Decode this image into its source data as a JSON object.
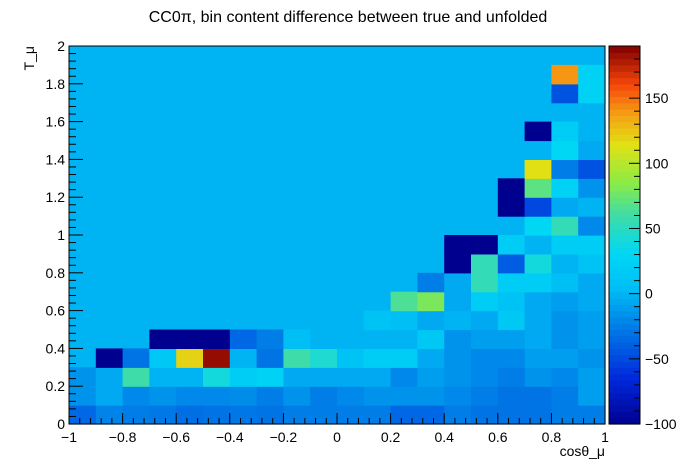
{
  "chart_data": {
    "type": "heatmap",
    "title": "CC0π, bin content difference between true and unfolded",
    "xlabel": "cosθ_μ",
    "ylabel": "T_μ",
    "xlim": [
      -1,
      1
    ],
    "ylim": [
      0,
      2
    ],
    "zlim": [
      -100,
      190
    ],
    "x_ticks": [
      "−1",
      "−0.8",
      "−0.6",
      "−0.4",
      "−0.2",
      "0",
      "0.2",
      "0.4",
      "0.6",
      "0.8",
      "1"
    ],
    "y_ticks": [
      "0",
      "0.2",
      "0.4",
      "0.6",
      "0.8",
      "1",
      "1.2",
      "1.4",
      "1.6",
      "1.8",
      "2"
    ],
    "z_ticks": [
      "−100",
      "−50",
      "0",
      "50",
      "100",
      "150"
    ],
    "background_value": 0,
    "nx": 20,
    "ny": 20,
    "rows": [
      [
        -35,
        -22,
        -25,
        -27,
        -32,
        -30,
        -28,
        -30,
        -25,
        -25,
        -25,
        -25,
        -35,
        -35,
        -25,
        -30,
        -30,
        -30,
        -25,
        -25
      ],
      [
        -15,
        -5,
        -20,
        -15,
        -20,
        -20,
        -18,
        -25,
        -15,
        -25,
        -20,
        -15,
        -15,
        -15,
        -20,
        -25,
        -30,
        -30,
        -25,
        -10
      ],
      [
        -15,
        -5,
        60,
        0,
        0,
        40,
        20,
        25,
        -5,
        -5,
        -5,
        -5,
        -20,
        -10,
        -15,
        -20,
        -25,
        -15,
        -20,
        -10
      ],
      [
        null,
        -100,
        -30,
        15,
        120,
        185,
        0,
        -30,
        60,
        45,
        10,
        20,
        20,
        -5,
        -15,
        -20,
        -20,
        -10,
        -10,
        -15
      ],
      [
        null,
        null,
        null,
        -100,
        -100,
        -100,
        -35,
        -25,
        5,
        0,
        0,
        0,
        0,
        15,
        -15,
        -10,
        -10,
        -5,
        -15,
        -10
      ],
      [
        null,
        null,
        null,
        null,
        null,
        null,
        null,
        null,
        null,
        null,
        null,
        10,
        5,
        -5,
        0,
        -5,
        15,
        -5,
        -15,
        -10
      ],
      [
        null,
        null,
        null,
        null,
        null,
        null,
        null,
        null,
        null,
        null,
        null,
        null,
        65,
        80,
        -5,
        20,
        10,
        -5,
        -10,
        -5
      ],
      [
        null,
        null,
        null,
        null,
        null,
        null,
        null,
        null,
        null,
        null,
        null,
        null,
        null,
        -25,
        -5,
        55,
        20,
        20,
        5,
        -5
      ],
      [
        null,
        null,
        null,
        null,
        null,
        null,
        null,
        null,
        null,
        null,
        null,
        null,
        null,
        null,
        -100,
        55,
        -40,
        40,
        0,
        10
      ],
      [
        null,
        null,
        null,
        null,
        null,
        null,
        null,
        null,
        null,
        null,
        null,
        null,
        null,
        null,
        -100,
        -100,
        20,
        0,
        20,
        20
      ],
      [
        null,
        null,
        null,
        null,
        null,
        null,
        null,
        null,
        null,
        null,
        null,
        null,
        null,
        null,
        null,
        null,
        null,
        30,
        55,
        -20
      ],
      [
        null,
        null,
        null,
        null,
        null,
        null,
        null,
        null,
        null,
        null,
        null,
        null,
        null,
        null,
        null,
        null,
        -100,
        -50,
        -5,
        0
      ],
      [
        null,
        null,
        null,
        null,
        null,
        null,
        null,
        null,
        null,
        null,
        null,
        null,
        null,
        null,
        null,
        null,
        -100,
        70,
        25,
        -15
      ],
      [
        null,
        null,
        null,
        null,
        null,
        null,
        null,
        null,
        null,
        null,
        null,
        null,
        null,
        null,
        null,
        null,
        null,
        115,
        -25,
        -45
      ],
      [
        null,
        null,
        null,
        null,
        null,
        null,
        null,
        null,
        null,
        null,
        null,
        null,
        null,
        null,
        null,
        null,
        null,
        0,
        30,
        -5
      ],
      [
        null,
        null,
        null,
        null,
        null,
        null,
        null,
        null,
        null,
        null,
        null,
        null,
        null,
        null,
        null,
        null,
        null,
        -100,
        20,
        0
      ],
      [
        null,
        null,
        null,
        null,
        null,
        null,
        null,
        null,
        null,
        null,
        null,
        null,
        null,
        null,
        null,
        null,
        null,
        null,
        null,
        null
      ],
      [
        null,
        null,
        null,
        null,
        null,
        null,
        null,
        null,
        null,
        null,
        null,
        null,
        null,
        null,
        null,
        null,
        null,
        null,
        -45,
        25
      ],
      [
        null,
        null,
        null,
        null,
        null,
        null,
        null,
        null,
        null,
        null,
        null,
        null,
        null,
        null,
        null,
        null,
        null,
        null,
        140,
        25
      ],
      [
        null,
        null,
        null,
        null,
        null,
        null,
        null,
        null,
        null,
        null,
        null,
        null,
        null,
        null,
        null,
        null,
        null,
        null,
        null,
        null
      ]
    ],
    "colorscale": "ROOT kBird-like rainbow (dark blue → cyan → green → yellow → red → dark red)",
    "colorbar_position": "right"
  }
}
